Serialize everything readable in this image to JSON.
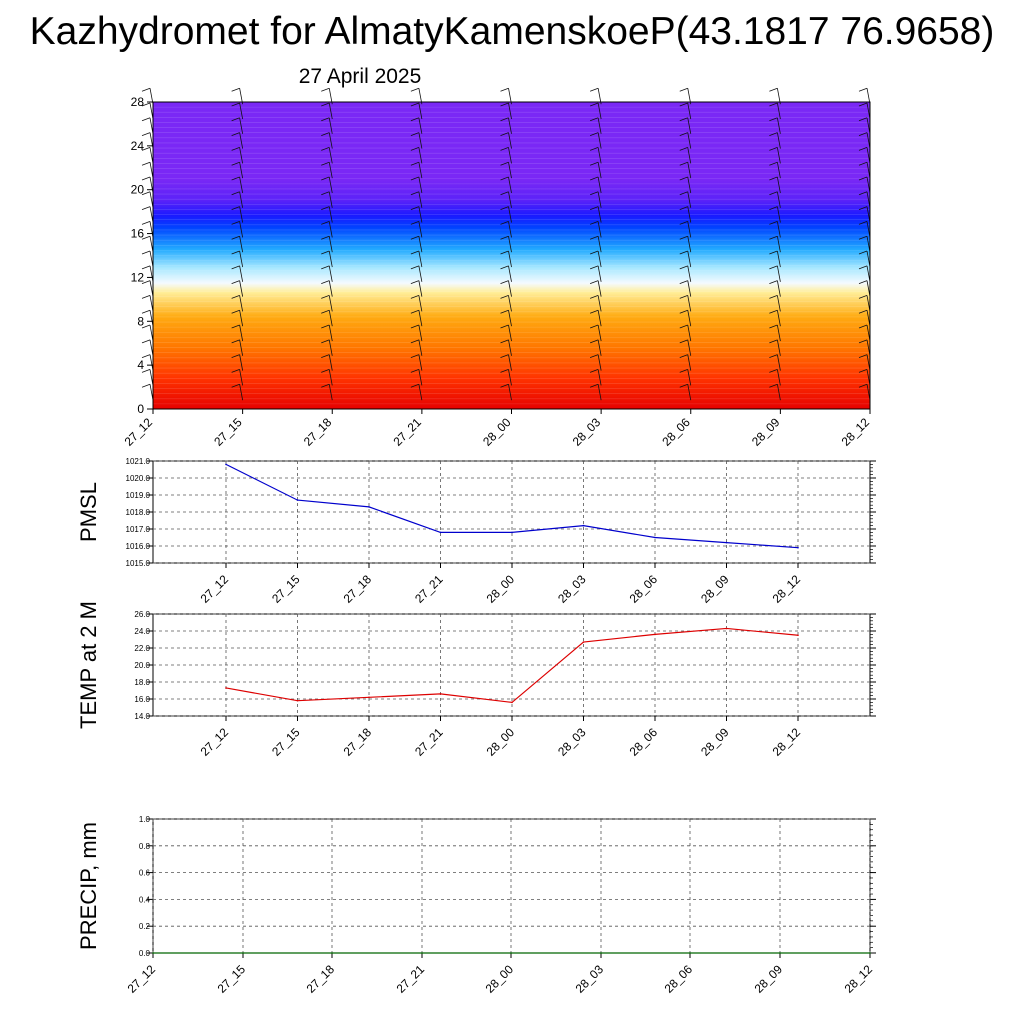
{
  "title": "Kazhydromet for AlmatyKamenskoeP(43.1817 76.9658)",
  "subtitle": "27 April 2025",
  "colors": {
    "pmsl_line": "#0000cc",
    "temp_line": "#dd0000",
    "precip_line": "#006600",
    "grid": "#555555"
  },
  "chart_data": [
    {
      "type": "heatmap",
      "title": "",
      "description_note": "",
      "x_categories": [
        "27_12",
        "27_15",
        "27_18",
        "27_21",
        "28_00",
        "28_03",
        "28_06",
        "28_09",
        "28_12"
      ],
      "y_ticks": [
        0,
        4,
        8,
        12,
        16,
        20,
        24,
        28
      ],
      "ylim": [
        0,
        28
      ],
      "color_bands_bottom_to_top": [
        "#e60000",
        "#ff4400",
        "#ff8800",
        "#ffcc33",
        "#ffffcc",
        "#a8e8ff",
        "#22aaff",
        "#0044ff",
        "#1a1aff",
        "#7a28f5"
      ],
      "wind_barbs": true
    },
    {
      "type": "line",
      "ylabel": "PMSL",
      "x_categories": [
        "27_12",
        "27_15",
        "27_18",
        "27_21",
        "28_00",
        "28_03",
        "28_06",
        "28_09",
        "28_12"
      ],
      "values": [
        1020.8,
        1018.7,
        1018.3,
        1016.8,
        1016.8,
        1017.2,
        1016.5,
        1016.2,
        1015.9
      ],
      "ylim": [
        1015.0,
        1021.0
      ],
      "y_ticks": [
        "1015.0",
        "1016.0",
        "1017.0",
        "1018.0",
        "1019.0",
        "1020.0",
        "1021.0"
      ],
      "grid": true
    },
    {
      "type": "line",
      "ylabel": "TEMP at 2 M",
      "x_categories": [
        "27_12",
        "27_15",
        "27_18",
        "27_21",
        "28_00",
        "28_03",
        "28_06",
        "28_09",
        "28_12"
      ],
      "values": [
        17.3,
        15.8,
        16.2,
        16.6,
        15.6,
        22.7,
        23.6,
        24.3,
        23.5
      ],
      "ylim": [
        14.0,
        26.0
      ],
      "y_ticks": [
        "14.0",
        "16.0",
        "18.0",
        "20.0",
        "22.0",
        "24.0",
        "26.0"
      ],
      "grid": true
    },
    {
      "type": "line",
      "ylabel": "PRECIP, mm",
      "x_categories": [
        "27_12",
        "27_15",
        "27_18",
        "27_21",
        "28_00",
        "28_03",
        "28_06",
        "28_09",
        "28_12"
      ],
      "values": [
        0,
        0,
        0,
        0,
        0,
        0,
        0,
        0,
        0
      ],
      "ylim": [
        0.0,
        1.0
      ],
      "y_ticks": [
        "0.0",
        "0.2",
        "0.4",
        "0.6",
        "0.8",
        "1.0"
      ],
      "grid": true
    }
  ]
}
